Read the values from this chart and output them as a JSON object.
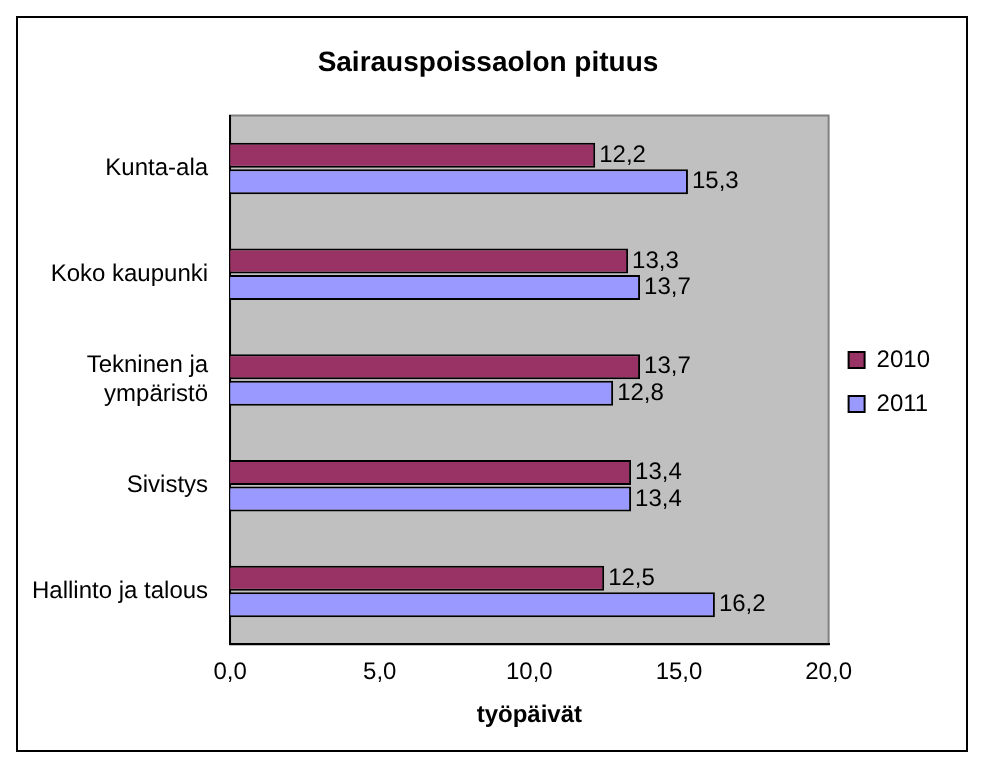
{
  "chart_data": {
    "type": "bar",
    "orientation": "horizontal",
    "title": "Sairauspoissaolon pituus",
    "xlabel": "työpäivät",
    "categories": [
      "Kunta-ala",
      "Koko kaupunki",
      "Tekninen ja\nympäristö",
      "Sivistys",
      "Hallinto ja talous"
    ],
    "series": [
      {
        "name": "2010",
        "color": "#993366",
        "values": [
          12.2,
          13.3,
          13.7,
          13.4,
          12.5
        ],
        "value_labels": [
          "12,2",
          "13,3",
          "13,7",
          "13,4",
          "12,5"
        ]
      },
      {
        "name": "2011",
        "color": "#9999ff",
        "values": [
          15.3,
          13.7,
          12.8,
          13.4,
          16.2
        ],
        "value_labels": [
          "15,3",
          "13,7",
          "12,8",
          "13,4",
          "16,2"
        ]
      }
    ],
    "xlim": [
      0,
      20
    ],
    "xticks": [
      {
        "value": 0,
        "label": "0,0"
      },
      {
        "value": 5,
        "label": "5,0"
      },
      {
        "value": 10,
        "label": "10,0"
      },
      {
        "value": 15,
        "label": "15,0"
      },
      {
        "value": 20,
        "label": "20,0"
      }
    ],
    "grid": false,
    "legend": "right"
  }
}
